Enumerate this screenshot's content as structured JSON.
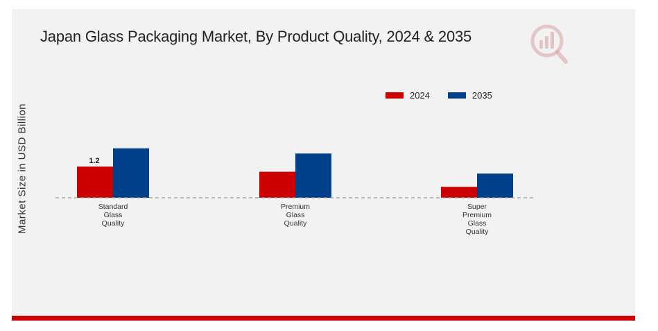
{
  "title": "Japan Glass Packaging Market, By Product Quality, 2024 & 2035",
  "colors": {
    "series_2024": "#cc0000",
    "series_2035": "#003f8a",
    "accent_bar": "#cc0000",
    "panel": "#f2f2f2"
  },
  "chart_data": {
    "type": "bar",
    "title": "Japan Glass Packaging Market, By Product Quality, 2024 & 2035",
    "ylabel": "Market Size in USD Billion",
    "xlabel": "",
    "categories": [
      [
        "Standard",
        "Glass",
        "Quality"
      ],
      [
        "Premium",
        "Glass",
        "Quality"
      ],
      [
        "Super",
        "Premium",
        "Glass",
        "Quality"
      ]
    ],
    "series": [
      {
        "name": "2024",
        "color": "#cc0000",
        "values": [
          1.2,
          1.0,
          0.42
        ]
      },
      {
        "name": "2035",
        "color": "#003f8a",
        "values": [
          1.9,
          1.7,
          0.93
        ]
      }
    ],
    "data_labels": [
      {
        "series": 0,
        "index": 0,
        "text": "1.2"
      }
    ],
    "ylim": [
      0,
      2.0
    ],
    "grid": false,
    "legend": "top-right",
    "baseline": "dashed"
  }
}
